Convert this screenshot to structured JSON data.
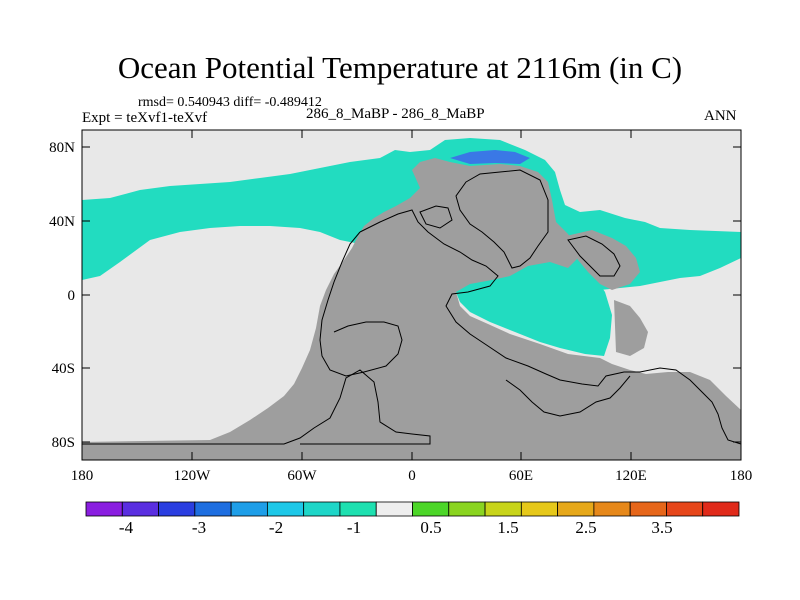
{
  "figure": {
    "title": "Ocean Potential Temperature at 2116m (in C)",
    "stats": "rmsd= 0.540943 diff= -0.489412",
    "left_label": "Expt = teXvf1-teXvf",
    "center_label": "286_8_MaBP - 286_8_MaBP",
    "right_label": "ANN"
  },
  "map": {
    "lat_ticks": [
      "80N",
      "40N",
      "0",
      "40S",
      "80S"
    ],
    "lon_ticks": [
      "180",
      "120W",
      "60W",
      "0",
      "60E",
      "120E",
      "180"
    ],
    "colors": {
      "ocean_zero": "#e8e8e8",
      "land": "#9e9e9e",
      "cyan_anomaly": "#22dcc0",
      "blue_anomaly": "#3a78e6"
    }
  },
  "colorbar": {
    "colors": [
      "#8a1ee0",
      "#5a2ee0",
      "#2a3ee0",
      "#1e6ee0",
      "#1e9ee8",
      "#1ec8e8",
      "#1ed6c8",
      "#1ee0b0",
      "#eeeeee",
      "#4cd628",
      "#8ad420",
      "#c8d41a",
      "#e6c81a",
      "#e6a81a",
      "#e6881a",
      "#e6661a",
      "#e6461a",
      "#e02a1a"
    ],
    "labels": [
      "-4",
      "-3",
      "-2",
      "-1",
      "0.5",
      "1.5",
      "2.5",
      "3.5"
    ]
  }
}
